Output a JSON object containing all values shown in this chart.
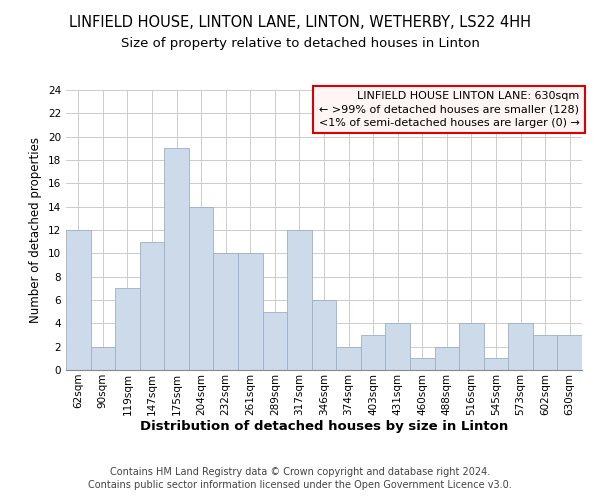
{
  "title": "LINFIELD HOUSE, LINTON LANE, LINTON, WETHERBY, LS22 4HH",
  "subtitle": "Size of property relative to detached houses in Linton",
  "xlabel": "Distribution of detached houses by size in Linton",
  "ylabel": "Number of detached properties",
  "categories": [
    "62sqm",
    "90sqm",
    "119sqm",
    "147sqm",
    "175sqm",
    "204sqm",
    "232sqm",
    "261sqm",
    "289sqm",
    "317sqm",
    "346sqm",
    "374sqm",
    "403sqm",
    "431sqm",
    "460sqm",
    "488sqm",
    "516sqm",
    "545sqm",
    "573sqm",
    "602sqm",
    "630sqm"
  ],
  "values": [
    12,
    2,
    7,
    11,
    19,
    14,
    10,
    10,
    5,
    12,
    6,
    2,
    3,
    4,
    1,
    2,
    4,
    1,
    4,
    3,
    3
  ],
  "bar_color": "#cddaea",
  "bar_edge_color": "#9ab0c8",
  "ylim": [
    0,
    24
  ],
  "yticks": [
    0,
    2,
    4,
    6,
    8,
    10,
    12,
    14,
    16,
    18,
    20,
    22,
    24
  ],
  "legend_title": "LINFIELD HOUSE LINTON LANE: 630sqm",
  "legend_line1": "← >99% of detached houses are smaller (128)",
  "legend_line2": "<1% of semi-detached houses are larger (0) →",
  "legend_facecolor": "#fff5f5",
  "legend_edge_color": "#dd0000",
  "footer_line1": "Contains HM Land Registry data © Crown copyright and database right 2024.",
  "footer_line2": "Contains public sector information licensed under the Open Government Licence v3.0.",
  "grid_color": "#cccccc",
  "background_color": "#ffffff",
  "title_fontsize": 10.5,
  "subtitle_fontsize": 9.5,
  "ylabel_fontsize": 8.5,
  "xlabel_fontsize": 9.5,
  "tick_fontsize": 7.5,
  "legend_fontsize": 8,
  "footer_fontsize": 7
}
